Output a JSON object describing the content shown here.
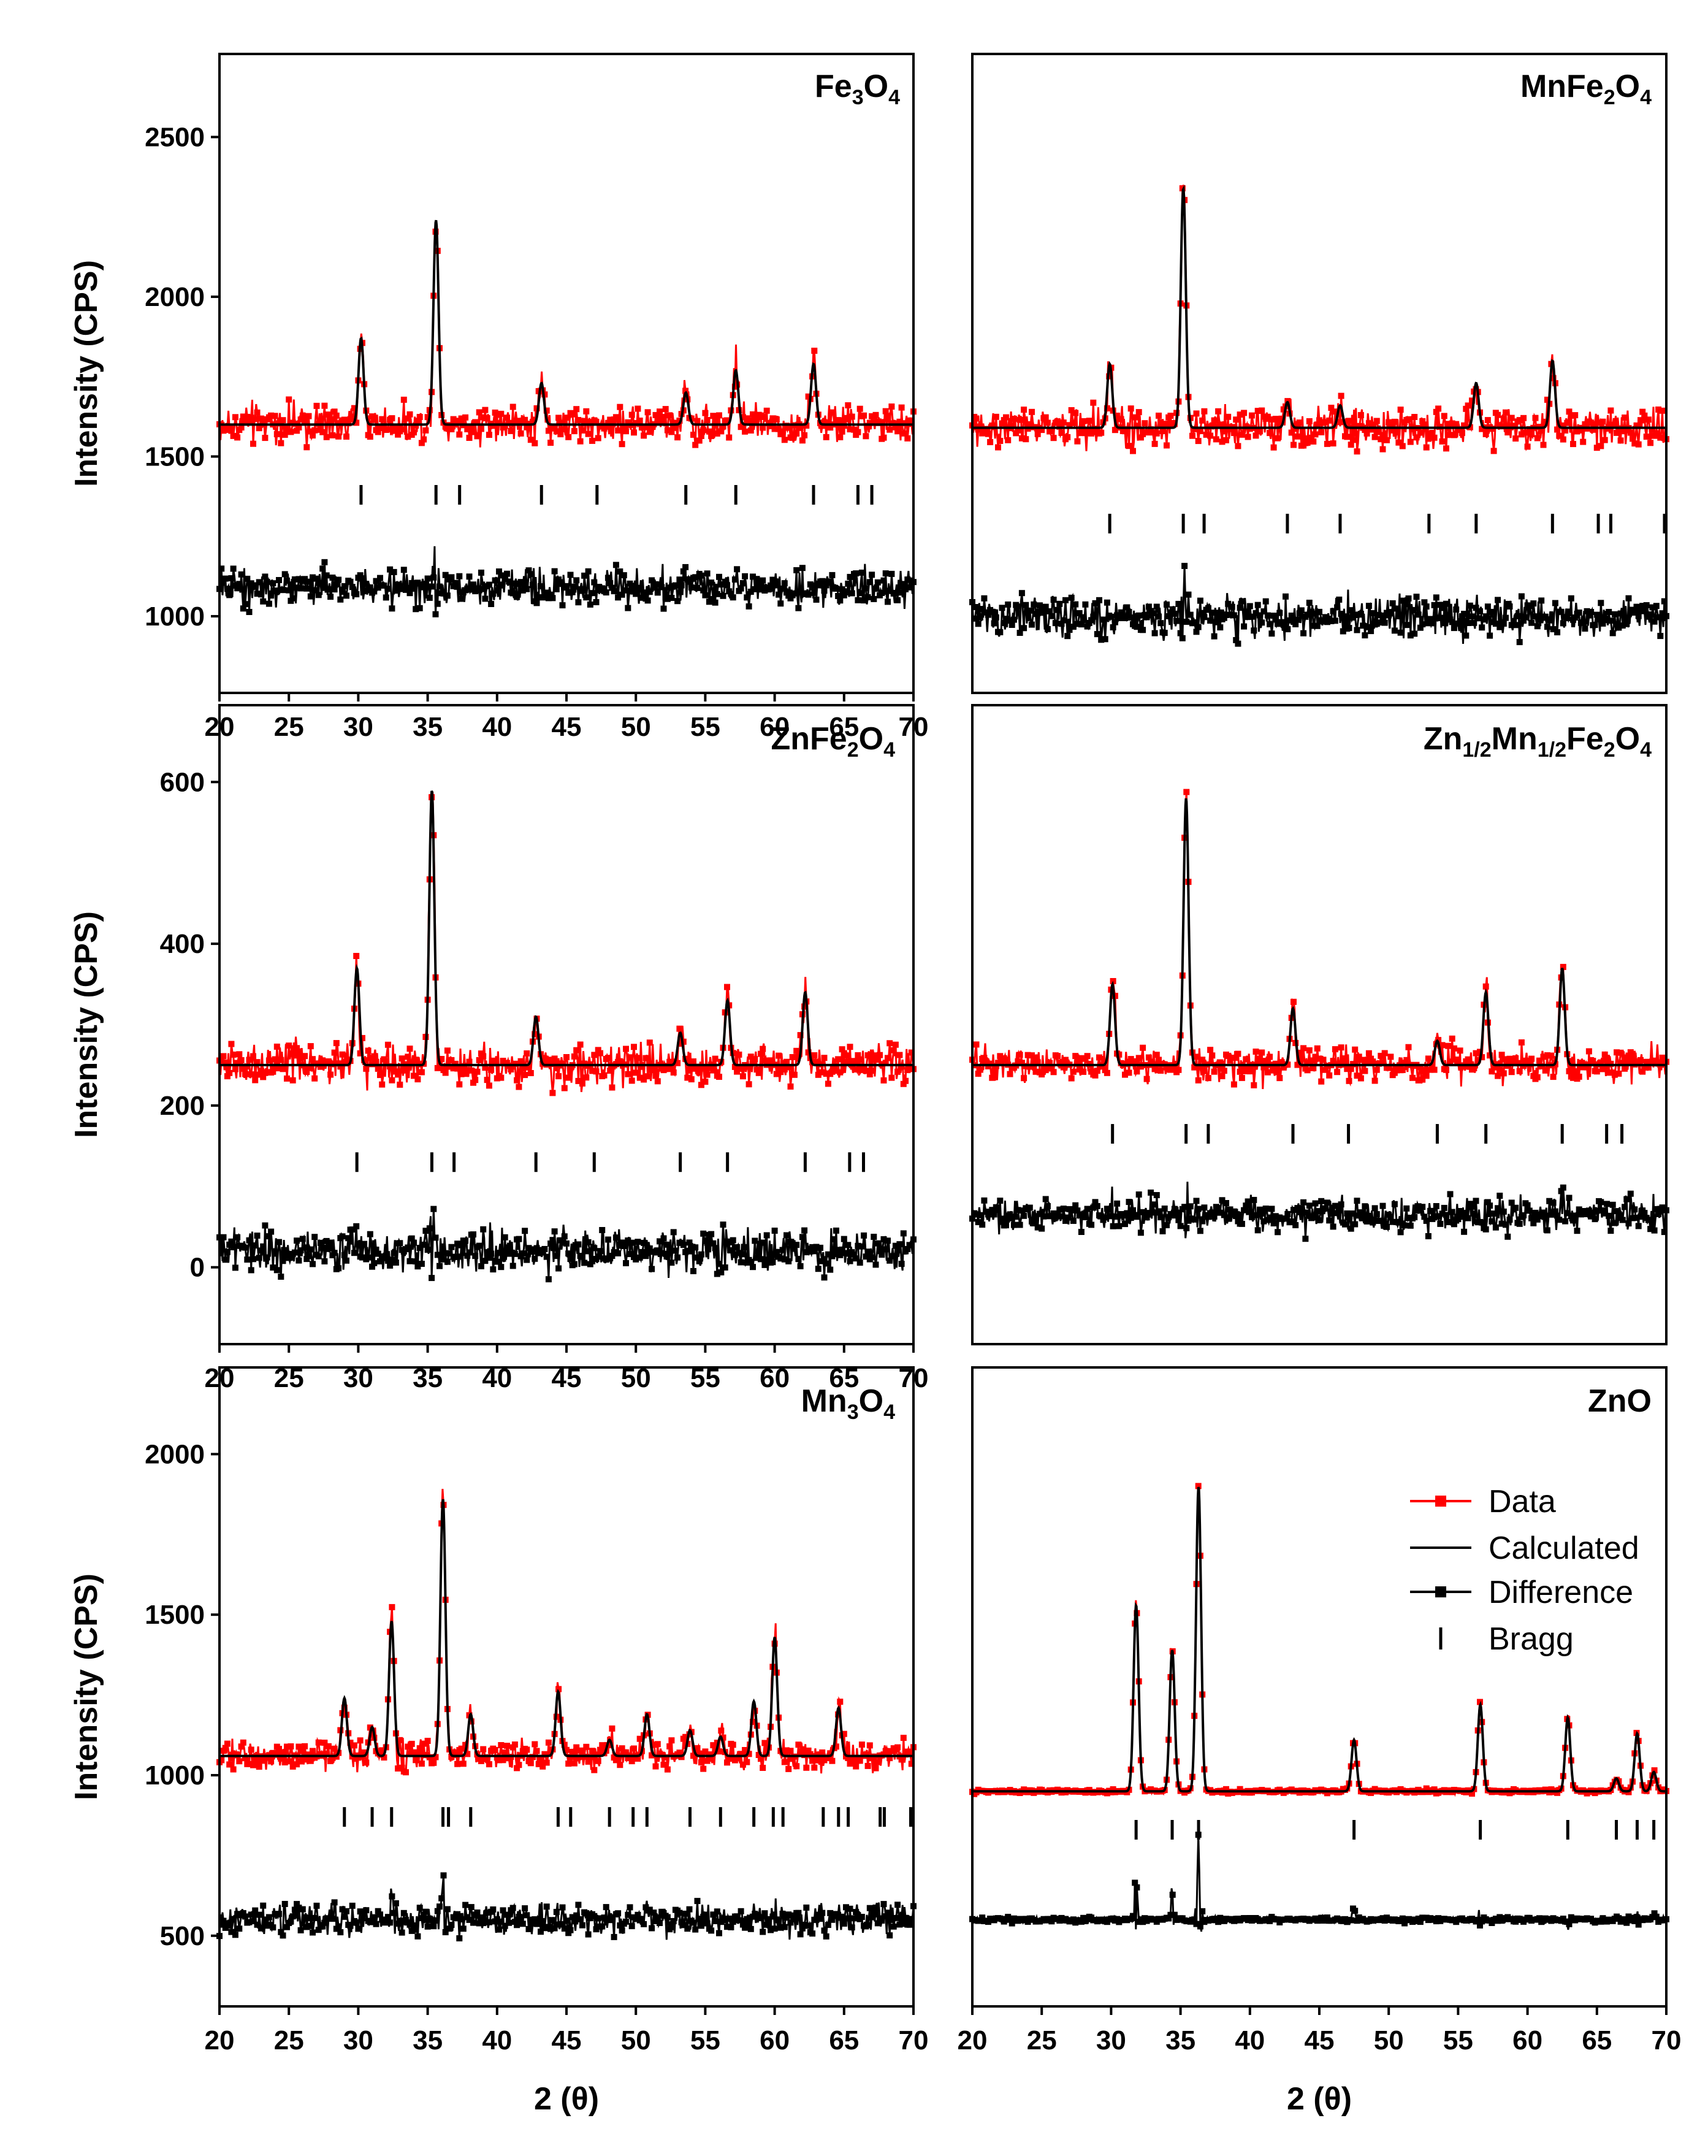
{
  "chart_data": [
    {
      "type": "line",
      "title": "Fe3O4",
      "title_parts": [
        [
          "Fe",
          ""
        ],
        [
          "3",
          "sub"
        ],
        [
          "O",
          ""
        ],
        [
          "4",
          "sub"
        ]
      ],
      "xlabel": "",
      "ylabel": "Intensity (CPS)",
      "xlim": [
        20,
        70
      ],
      "ylim": [
        760,
        2760
      ],
      "xticks": [
        20,
        25,
        30,
        35,
        40,
        45,
        50,
        55,
        60,
        65,
        70
      ],
      "yticks": [
        1000,
        1500,
        2000,
        2500
      ],
      "baseline": 1600,
      "peaks": [
        [
          30.2,
          270
        ],
        [
          35.6,
          640
        ],
        [
          43.2,
          130
        ],
        [
          53.6,
          100
        ],
        [
          57.2,
          170
        ],
        [
          62.8,
          190
        ]
      ],
      "bragg_level": 1380,
      "bragg_positions": [
        30.2,
        35.6,
        37.3,
        43.2,
        47.2,
        53.6,
        57.2,
        62.8,
        66.0,
        67.0
      ],
      "difference_level": 1090,
      "series": [
        {
          "name": "Data",
          "color": "#ff0000",
          "noise": 55
        },
        {
          "name": "Calculated",
          "color": "#000000"
        },
        {
          "name": "Difference",
          "color": "#000000",
          "noise": 55
        }
      ]
    },
    {
      "type": "line",
      "title": "MnFe2O4",
      "title_parts": [
        [
          "MnFe",
          ""
        ],
        [
          "2",
          "sub"
        ],
        [
          "O",
          ""
        ],
        [
          "4",
          "sub"
        ]
      ],
      "xlabel": "",
      "ylabel": "",
      "xlim": [
        20,
        70
      ],
      "ylim": [
        760,
        2760
      ],
      "xticks": [],
      "yticks": [],
      "baseline": 1590,
      "peaks": [
        [
          29.9,
          200
        ],
        [
          35.2,
          750
        ],
        [
          42.7,
          80
        ],
        [
          46.5,
          70
        ],
        [
          56.3,
          140
        ],
        [
          61.8,
          210
        ]
      ],
      "bragg_level": 1290,
      "bragg_positions": [
        29.9,
        35.2,
        36.7,
        42.7,
        46.5,
        52.9,
        56.3,
        61.8,
        65.1,
        66.0,
        70.0
      ],
      "difference_level": 1000,
      "series": [
        {
          "name": "Data",
          "color": "#ff0000",
          "noise": 60
        },
        {
          "name": "Calculated",
          "color": "#000000"
        },
        {
          "name": "Difference",
          "color": "#000000",
          "noise": 60
        }
      ]
    },
    {
      "type": "line",
      "title": "ZnFe2O4",
      "title_parts": [
        [
          "ZnFe",
          ""
        ],
        [
          "2",
          "sub"
        ],
        [
          "O",
          ""
        ],
        [
          "4",
          "sub"
        ]
      ],
      "xlabel": "",
      "ylabel": "Intensity (CPS)",
      "xlim": [
        20,
        70
      ],
      "ylim": [
        -95,
        695
      ],
      "xticks": [
        20,
        25,
        30,
        35,
        40,
        45,
        50,
        55,
        60,
        65,
        70
      ],
      "yticks": [
        0,
        200,
        400,
        600
      ],
      "baseline": 250,
      "peaks": [
        [
          29.9,
          120
        ],
        [
          35.3,
          340
        ],
        [
          42.8,
          60
        ],
        [
          53.2,
          40
        ],
        [
          56.6,
          80
        ],
        [
          62.2,
          90
        ]
      ],
      "bragg_level": 130,
      "bragg_positions": [
        29.9,
        35.3,
        36.9,
        42.8,
        47.0,
        53.2,
        56.6,
        62.2,
        65.4,
        66.4
      ],
      "difference_level": 20,
      "series": [
        {
          "name": "Data",
          "color": "#ff0000",
          "noise": 25
        },
        {
          "name": "Calculated",
          "color": "#000000"
        },
        {
          "name": "Difference",
          "color": "#000000",
          "noise": 25
        }
      ]
    },
    {
      "type": "line",
      "title": "Zn1/2Mn1/2Fe2O4",
      "title_parts": [
        [
          "Zn",
          ""
        ],
        [
          "1/2",
          "sub"
        ],
        [
          "Mn",
          ""
        ],
        [
          "1/2",
          "sub"
        ],
        [
          "Fe",
          ""
        ],
        [
          "2",
          "sub"
        ],
        [
          "O",
          ""
        ],
        [
          "4",
          "sub"
        ]
      ],
      "xlabel": "",
      "ylabel": "",
      "xlim": [
        20,
        70
      ],
      "ylim": [
        -95,
        695
      ],
      "xticks": [],
      "yticks": [],
      "baseline": 250,
      "peaks": [
        [
          30.1,
          100
        ],
        [
          35.4,
          330
        ],
        [
          43.1,
          70
        ],
        [
          53.5,
          30
        ],
        [
          57.0,
          90
        ],
        [
          62.5,
          120
        ]
      ],
      "bragg_level": 165,
      "bragg_positions": [
        30.1,
        35.4,
        37.0,
        43.1,
        47.1,
        53.5,
        57.0,
        62.5,
        65.7,
        66.8
      ],
      "difference_level": 65,
      "series": [
        {
          "name": "Data",
          "color": "#ff0000",
          "noise": 20
        },
        {
          "name": "Calculated",
          "color": "#000000"
        },
        {
          "name": "Difference",
          "color": "#000000",
          "noise": 20
        }
      ]
    },
    {
      "type": "line",
      "title": "Mn3O4",
      "title_parts": [
        [
          "Mn",
          ""
        ],
        [
          "3",
          "sub"
        ],
        [
          "O",
          ""
        ],
        [
          "4",
          "sub"
        ]
      ],
      "xlabel": "2 (θ)",
      "ylabel": "Intensity (CPS)",
      "xlim": [
        20,
        70
      ],
      "ylim": [
        280,
        2270
      ],
      "xticks": [
        20,
        25,
        30,
        35,
        40,
        45,
        50,
        55,
        60,
        65,
        70
      ],
      "yticks": [
        500,
        1000,
        1500,
        2000
      ],
      "baseline": 1060,
      "peaks": [
        [
          29.0,
          180
        ],
        [
          31.0,
          90
        ],
        [
          32.4,
          420
        ],
        [
          36.1,
          800
        ],
        [
          38.1,
          130
        ],
        [
          44.4,
          200
        ],
        [
          48.1,
          50
        ],
        [
          50.8,
          130
        ],
        [
          53.9,
          80
        ],
        [
          56.1,
          60
        ],
        [
          58.5,
          170
        ],
        [
          60.0,
          370
        ],
        [
          64.6,
          150
        ]
      ],
      "bragg_level": 870,
      "bragg_positions": [
        29.0,
        31.0,
        32.4,
        36.1,
        36.5,
        38.1,
        44.4,
        45.3,
        48.1,
        49.8,
        50.8,
        53.9,
        56.1,
        58.5,
        59.9,
        60.6,
        63.5,
        64.6,
        65.3,
        67.6,
        67.9,
        69.8
      ],
      "difference_level": 550,
      "series": [
        {
          "name": "Data",
          "color": "#ff0000",
          "noise": 45
        },
        {
          "name": "Calculated",
          "color": "#000000"
        },
        {
          "name": "Difference",
          "color": "#000000",
          "noise": 45
        }
      ]
    },
    {
      "type": "line",
      "title": "ZnO",
      "title_parts": [
        [
          "ZnO",
          ""
        ]
      ],
      "xlabel": "2 (θ)",
      "ylabel": "",
      "xlim": [
        20,
        70
      ],
      "ylim": [
        280,
        2270
      ],
      "xticks": [
        20,
        25,
        30,
        35,
        40,
        45,
        50,
        55,
        60,
        65,
        70
      ],
      "yticks": [],
      "baseline": 950,
      "peaks": [
        [
          31.8,
          580
        ],
        [
          34.4,
          440
        ],
        [
          36.3,
          950
        ],
        [
          47.5,
          160
        ],
        [
          56.6,
          270
        ],
        [
          62.9,
          230
        ],
        [
          66.4,
          40
        ],
        [
          67.9,
          180
        ],
        [
          69.1,
          60
        ]
      ],
      "bragg_level": 830,
      "bragg_positions": [
        31.8,
        34.4,
        36.3,
        47.5,
        56.6,
        62.9,
        66.4,
        67.9,
        69.1
      ],
      "difference_level": 550,
      "series": [
        {
          "name": "Data",
          "color": "#ff0000",
          "noise": 6
        },
        {
          "name": "Calculated",
          "color": "#000000"
        },
        {
          "name": "Difference",
          "color": "#000000",
          "noise": 8
        }
      ]
    }
  ],
  "legend": {
    "placement": "right",
    "entries": [
      {
        "label": "Data",
        "color": "#ff0000",
        "style": "line-marker"
      },
      {
        "label": "Calculated",
        "color": "#000000",
        "style": "line"
      },
      {
        "label": "Difference",
        "color": "#000000",
        "style": "line-marker"
      },
      {
        "label": "Bragg",
        "color": "#000000",
        "style": "tick"
      }
    ]
  }
}
